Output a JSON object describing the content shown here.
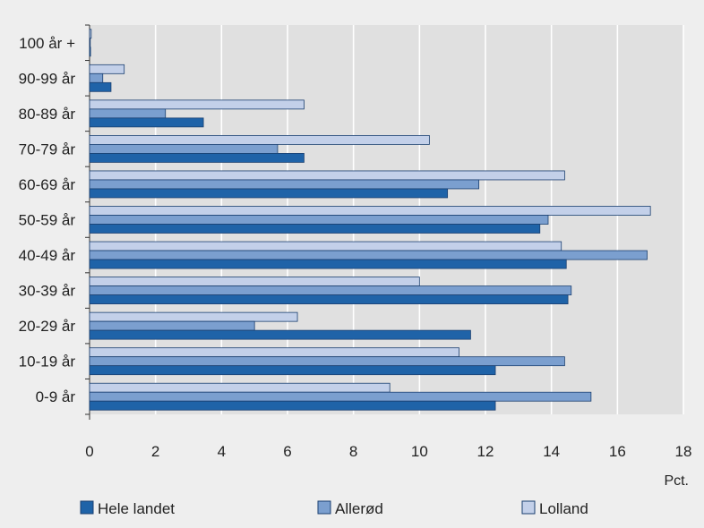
{
  "chart_data": {
    "type": "bar",
    "orientation": "horizontal",
    "categories": [
      "100 år +",
      "90-99 år",
      "80-89 år",
      "70-79 år",
      "60-69 år",
      "50-59 år",
      "40-49 år",
      "30-39 år",
      "20-29 år",
      "10-19 år",
      "0-9 år"
    ],
    "series": [
      {
        "name": "Lolland",
        "values": [
          0.05,
          1.05,
          6.5,
          10.3,
          14.4,
          17.0,
          14.3,
          10.0,
          6.3,
          11.2,
          9.1
        ]
      },
      {
        "name": "Allerød",
        "values": [
          0.02,
          0.4,
          2.3,
          5.7,
          11.8,
          13.9,
          16.9,
          14.6,
          5.0,
          14.4,
          15.2
        ]
      },
      {
        "name": "Hele landet",
        "values": [
          0.03,
          0.65,
          3.45,
          6.5,
          10.85,
          13.65,
          14.45,
          14.5,
          11.55,
          12.3,
          12.3
        ]
      }
    ],
    "xlim": [
      0,
      18
    ],
    "xticks": [
      "0",
      "2",
      "4",
      "6",
      "8",
      "10",
      "12",
      "14",
      "16",
      "18"
    ],
    "xunit": "Pct.",
    "legend": {
      "placement": "bottom",
      "order": [
        "Hele landet",
        "Allerød",
        "Lolland"
      ]
    },
    "grid": true,
    "colors": {
      "Hele landet": "#1f63a8",
      "Allerød": "#7b9fcf",
      "Lolland": "#c3d0e9"
    },
    "plot_background": "#e0e0e0"
  }
}
